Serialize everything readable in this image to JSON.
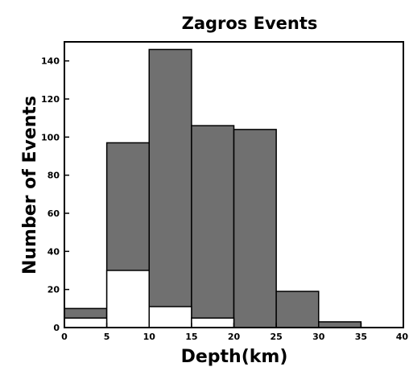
{
  "chart_data": {
    "type": "bar",
    "title": "Zagros Events",
    "xlabel": "Depth(km)",
    "ylabel": "Number of Events",
    "bins": [
      {
        "x0": 0,
        "x1": 5,
        "total": 10,
        "subset": 5
      },
      {
        "x0": 5,
        "x1": 10,
        "total": 97,
        "subset": 30
      },
      {
        "x0": 10,
        "x1": 15,
        "total": 146,
        "subset": 11
      },
      {
        "x0": 15,
        "x1": 20,
        "total": 106,
        "subset": 5
      },
      {
        "x0": 20,
        "x1": 25,
        "total": 104,
        "subset": 0
      },
      {
        "x0": 25,
        "x1": 30,
        "total": 19,
        "subset": 0
      },
      {
        "x0": 30,
        "x1": 35,
        "total": 3,
        "subset": 0
      }
    ],
    "xlim": [
      0,
      40
    ],
    "ylim": [
      0,
      150
    ],
    "xticks": [
      0,
      5,
      10,
      15,
      20,
      25,
      30,
      35,
      40
    ],
    "yticks": [
      0,
      20,
      40,
      60,
      80,
      100,
      120,
      140
    ],
    "xtick_labels": [
      "0",
      "5",
      "10",
      "15",
      "20",
      "25",
      "30",
      "35",
      "40"
    ],
    "ytick_labels": [
      "0",
      "20",
      "40",
      "60",
      "80",
      "100",
      "120",
      "140"
    ],
    "colors": {
      "total": "#707070",
      "subset": "#ffffff",
      "outline": "#000000"
    },
    "grid": false,
    "legend": "none"
  }
}
